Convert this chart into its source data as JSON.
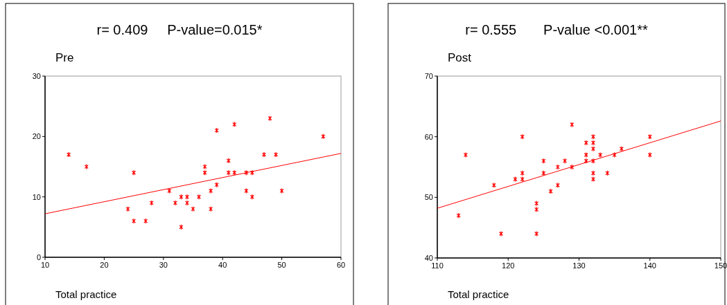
{
  "chart_data": [
    {
      "type": "scatter",
      "title": "r= 0.409     P-value=0.015*",
      "ylabel": "Pre",
      "xlabel": "Total practice",
      "xlim": [
        10,
        60
      ],
      "xticks": [
        10,
        20,
        30,
        40,
        50,
        60
      ],
      "ylim": [
        0,
        30
      ],
      "yticks": [
        0,
        10,
        20,
        30
      ],
      "series": [
        {
          "marker": "cross",
          "color": "#ff0000",
          "x": [
            14,
            17,
            24,
            25,
            25,
            27,
            28,
            31,
            32,
            33,
            33,
            34,
            34,
            35,
            36,
            37,
            37,
            38,
            38,
            39,
            39,
            41,
            41,
            42,
            42,
            44,
            44,
            45,
            45,
            47,
            48,
            49,
            50,
            57
          ],
          "values": [
            17,
            15,
            8,
            14,
            6,
            6,
            9,
            11,
            9,
            10,
            5,
            10,
            9,
            8,
            10,
            15,
            14,
            11,
            8,
            21,
            12,
            16,
            14,
            22,
            14,
            14,
            11,
            14,
            10,
            17,
            23,
            17,
            11,
            20
          ]
        },
        {
          "type": "line",
          "color": "#ff0000",
          "x": [
            10,
            60
          ],
          "values": [
            7.2,
            17.2
          ]
        }
      ]
    },
    {
      "type": "scatter",
      "title": "r= 0.555       P-value <0.001**",
      "ylabel": "Post",
      "xlabel": "Total practice",
      "xlim": [
        110,
        150
      ],
      "xticks": [
        110,
        120,
        130,
        140,
        150
      ],
      "ylim": [
        40,
        70
      ],
      "yticks": [
        40,
        50,
        60,
        70
      ],
      "series": [
        {
          "marker": "cross",
          "color": "#ff0000",
          "x": [
            113,
            114,
            118,
            119,
            121,
            122,
            122,
            122,
            124,
            124,
            124,
            125,
            125,
            126,
            127,
            127,
            128,
            129,
            129,
            131,
            131,
            131,
            132,
            132,
            132,
            132,
            132,
            132,
            133,
            134,
            135,
            136,
            140,
            140
          ],
          "values": [
            47,
            57,
            52,
            44,
            53,
            60,
            54,
            53,
            49,
            48,
            44,
            56,
            54,
            51,
            55,
            52,
            56,
            62,
            55,
            59,
            57,
            56,
            60,
            59,
            58,
            56,
            54,
            53,
            57,
            54,
            57,
            58,
            60,
            57
          ]
        },
        {
          "type": "line",
          "color": "#ff0000",
          "x": [
            110,
            150
          ],
          "values": [
            48.2,
            62.6
          ]
        }
      ]
    }
  ]
}
